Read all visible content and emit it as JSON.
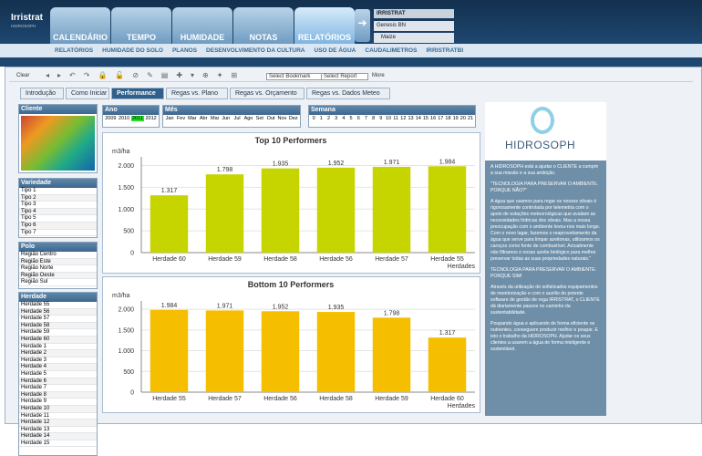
{
  "header": {
    "brand": "Irristrat",
    "brand_sub": "HIDROSOPH",
    "tabs": [
      "CALENDÁRIO",
      "TEMPO",
      "HUMIDADE",
      "NOTAS",
      "RELATÓRIOS"
    ],
    "active_tab": 4,
    "user": {
      "app": "IRRISTRAT",
      "farm": "Genesis BN",
      "crop": "Maize"
    }
  },
  "subnav": [
    "RELATÓRIOS",
    "HUMIDADE DO SOLO",
    "PLANOS",
    "DESENVOLVIMENTO DA CULTURA",
    "USO DE ÁGUA",
    "CAUDALIMETROS",
    "IRRISTRATBI"
  ],
  "toolbar": {
    "clear": "Clear",
    "bookmark": "Select Bookmark",
    "report": "Select Report",
    "more": "More"
  },
  "report_tabs": [
    "Introdução",
    "Como Iniciar",
    "Performance",
    "Regas vs. Plano",
    "Regas vs. Orçamento",
    "Regas vs. Dados Meteo"
  ],
  "active_report_tab": 2,
  "filters": {
    "cliente": {
      "title": "Cliente"
    },
    "ano": {
      "title": "Ano",
      "items": [
        "2009",
        "2010",
        "2011",
        "2012"
      ],
      "selected_index": 2
    },
    "mes": {
      "title": "Mês",
      "items": [
        "Jan",
        "Fev",
        "Mar",
        "Abr",
        "Mai",
        "Jun",
        "Jul",
        "Ago",
        "Set",
        "Out",
        "Nov",
        "Dez"
      ]
    },
    "semana": {
      "title": "Semana",
      "items": [
        "0",
        "1",
        "2",
        "3",
        "4",
        "5",
        "6",
        "7",
        "8",
        "9",
        "10",
        "11",
        "12",
        "13",
        "14",
        "15",
        "16",
        "17",
        "18",
        "19",
        "20",
        "21"
      ]
    },
    "variedade": {
      "title": "Variedade",
      "items": [
        "Tipo 1",
        "Tipo 2",
        "Tipo 3",
        "Tipo 4",
        "Tipo 5",
        "Tipo 6",
        "Tipo 7"
      ]
    },
    "polo": {
      "title": "Polo",
      "items": [
        "Região Centro",
        "Região Este",
        "Região Norte",
        "Região Oeste",
        "Região Sul"
      ],
      "selected_index": 1
    },
    "herdade": {
      "title": "Herdade",
      "items": [
        "Herdade 55",
        "Herdade 56",
        "Herdade 57",
        "Herdade 58",
        "Herdade 59",
        "Herdade 60",
        "Herdade 1",
        "Herdade 2",
        "Herdade 3",
        "Herdade 4",
        "Herdade 5",
        "Herdade 6",
        "Herdade 7",
        "Herdade 8",
        "Herdade 9",
        "Herdade 10",
        "Herdade 11",
        "Herdade 12",
        "Herdade 13",
        "Herdade 14",
        "Herdade 15"
      ]
    }
  },
  "charts": [
    {
      "type": "bar",
      "title": "Top 10 Performers",
      "y_label": "m3/ha",
      "x_label": "Herdades",
      "color": "#c6d500",
      "categories": [
        "Herdade 60",
        "Herdade 59",
        "Herdade 58",
        "Herdade 56",
        "Herdade 57",
        "Herdade 55"
      ],
      "values": [
        1317,
        1798,
        1935,
        1952,
        1971,
        1984
      ],
      "value_labels": [
        "1.317",
        "1.798",
        "1.935",
        "1.952",
        "1.971",
        "1.984"
      ],
      "ylim": [
        0,
        2200
      ],
      "yticks": [
        0,
        500,
        {
          "value": 1000,
          "label": "1.000"
        },
        {
          "value": 1500,
          "label": "1.500"
        },
        {
          "value": 2000,
          "label": "2.000"
        }
      ],
      "grid": true
    },
    {
      "type": "bar",
      "title": "Bottom 10 Performers",
      "y_label": "m3/ha",
      "x_label": "Herdades",
      "color": "#f5bf00",
      "categories": [
        "Herdade 55",
        "Herdade 57",
        "Herdade 56",
        "Herdade 58",
        "Herdade 59",
        "Herdade 60"
      ],
      "values": [
        1984,
        1971,
        1952,
        1935,
        1798,
        1317
      ],
      "value_labels": [
        "1.984",
        "1.971",
        "1.952",
        "1.935",
        "1.798",
        "1.317"
      ],
      "ylim": [
        0,
        2200
      ],
      "yticks": [
        0,
        500,
        {
          "value": 1000,
          "label": "1.000"
        },
        {
          "value": 1500,
          "label": "1.500"
        },
        {
          "value": 2000,
          "label": "2.000"
        }
      ],
      "grid": true
    }
  ],
  "sidebar": {
    "logo": "HIDROSOPH",
    "paragraphs": [
      "A HIDROSOPH está a ajudar o CLIENTE a cumprir a sua missão e a sua ambição.",
      "\"TECNOLOGIA PARA PRESERVAR O AMBIENTE. PORQUE NÃO?\"",
      "A água que usamos para regar os nossos olivais é rigorosamente controlada por telemetria com o apoio de estações meteorológicas que avaliam as necessidades hídricas dos olivais. Mas a nossa preocupação com o ambiente levou-nos mais longe. Com o novo lagar, fazemos o reaproveitamento da água que serve para limpar azeitonas, utilizamos os caroços como fonte de combustível. Actualmente não filtramos o nosso azeite biológico para melhor preservar todas as suas propriedades naturais.\"",
      "TECNOLOGIA PARA PRESERVAR O AMBIENTE. PORQUE SIM!",
      "Através da utilização de sofisticados equipamentos de monitorização e com o auxílio do potente software de gestão de rega IRRISTRAT, o CLIENTE dá diariamente passos no caminho da sustentabilidade.",
      "Poupando água e aplicando de forma eficiente os nutrientes, conseguem produzir melhor e poupar. E isto o trabalho da HIDROSOPH. Ajudar os seus clientes a usarem a água de forma inteligente e sustentável."
    ]
  }
}
